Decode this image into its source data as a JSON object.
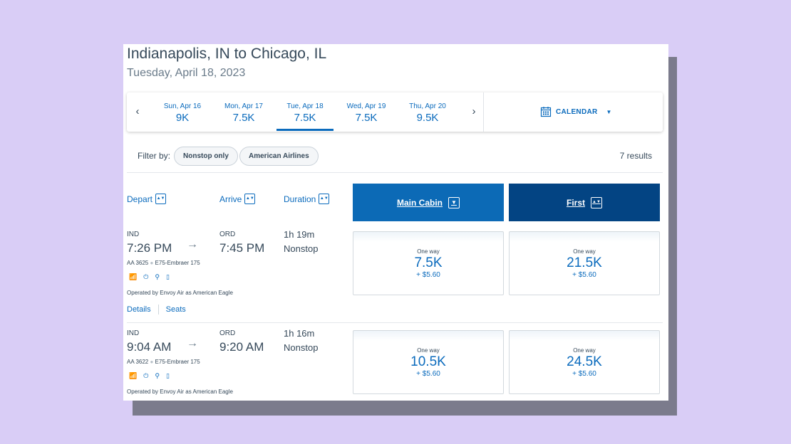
{
  "header": {
    "route": "Indianapolis, IN to Chicago, IL",
    "date": "Tuesday, April 18, 2023"
  },
  "date_strip": {
    "prev": "‹",
    "next": "›",
    "tabs": [
      {
        "label": "Sun, Apr 16",
        "price": "9K"
      },
      {
        "label": "Mon, Apr 17",
        "price": "7.5K"
      },
      {
        "label": "Tue, Apr 18",
        "price": "7.5K"
      },
      {
        "label": "Wed, Apr 19",
        "price": "7.5K"
      },
      {
        "label": "Thu, Apr 20",
        "price": "9.5K"
      }
    ],
    "selected_index": 2,
    "calendar_label": "CALENDAR"
  },
  "filters": {
    "label": "Filter by:",
    "chips": [
      "Nonstop only",
      "American Airlines"
    ],
    "results": "7 results"
  },
  "columns": {
    "depart": "Depart",
    "arrive": "Arrive",
    "duration": "Duration",
    "main_cabin": "Main Cabin",
    "first": "First"
  },
  "flights": [
    {
      "origin": "IND",
      "destination": "ORD",
      "depart_time": "7:26 PM",
      "arrive_time": "7:45 PM",
      "duration": "1h 19m",
      "stops": "Nonstop",
      "flight_number": "AA 3625",
      "aircraft": "E75-Embraer 175",
      "operated_by": "Operated by Envoy Air as American Eagle",
      "details_label": "Details",
      "seats_label": "Seats",
      "main": {
        "label": "One way",
        "points": "7.5K",
        "fee": "+ $5.60"
      },
      "first": {
        "label": "One way",
        "points": "21.5K",
        "fee": "+ $5.60"
      }
    },
    {
      "origin": "IND",
      "destination": "ORD",
      "depart_time": "9:04 AM",
      "arrive_time": "9:20 AM",
      "duration": "1h 16m",
      "stops": "Nonstop",
      "flight_number": "AA 3622",
      "aircraft": "E75-Embraer 175",
      "operated_by": "Operated by Envoy Air as American Eagle",
      "main": {
        "label": "One way",
        "points": "10.5K",
        "fee": "+ $5.60"
      },
      "first": {
        "label": "One way",
        "points": "24.5K",
        "fee": "+ $5.60"
      }
    }
  ],
  "amenity_icons": [
    "wifi-icon",
    "power-icon",
    "usb-icon",
    "entertainment-icon"
  ],
  "colors": {
    "accent": "#0b6bbd",
    "main_cabin": "#0c6ab6",
    "first": "#034483",
    "background": "#d9cdf6"
  }
}
